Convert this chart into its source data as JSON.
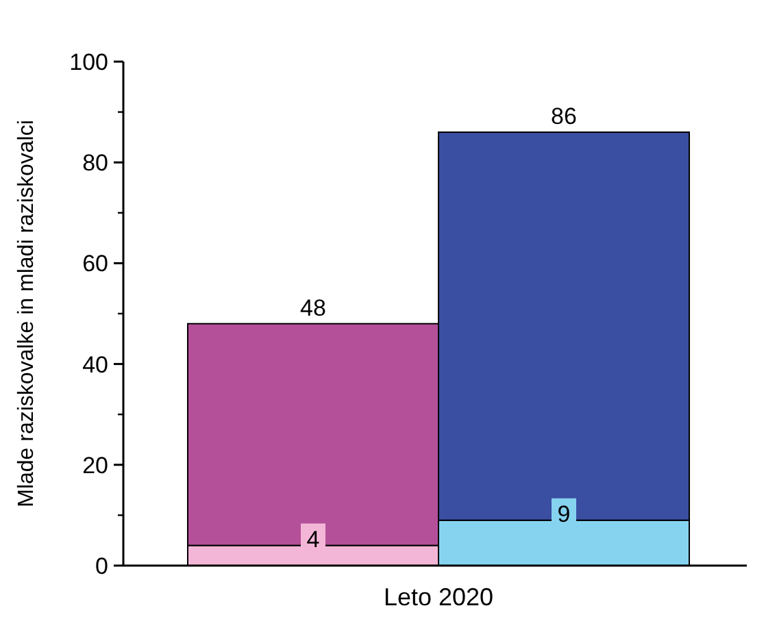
{
  "chart_data": {
    "type": "bar",
    "stacked": true,
    "xlabel": "Leto 2020",
    "ylabel": "Mlade raziskovalke in mladi raziskovalci",
    "categories": [
      null,
      null
    ],
    "series": [
      {
        "colors": [
          "#f4b6d6",
          "#86d3f0"
        ],
        "values": [
          4,
          9
        ],
        "value_labels": [
          "4",
          "9"
        ]
      },
      {
        "colors": [
          "#b4509a",
          "#3a4fa2"
        ],
        "values": [
          44,
          77
        ]
      }
    ],
    "totals": [
      "48",
      "86"
    ],
    "ylim": [
      0,
      100
    ],
    "yticks": [
      0,
      20,
      40,
      60,
      80,
      100
    ],
    "grid": false
  }
}
